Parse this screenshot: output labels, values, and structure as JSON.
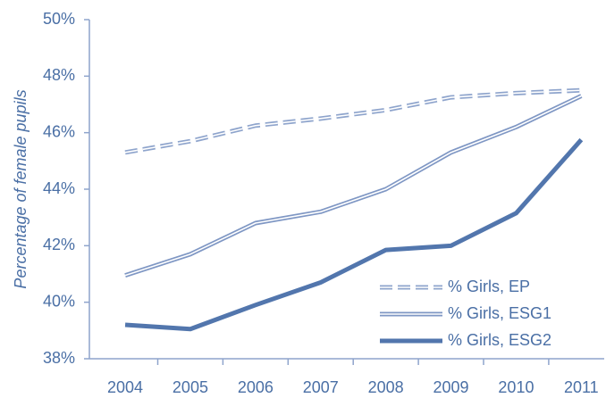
{
  "chart_data": {
    "type": "line",
    "y_label": "Percentage of female pupils",
    "categories": [
      "2004",
      "2005",
      "2006",
      "2007",
      "2008",
      "2009",
      "2010",
      "2011"
    ],
    "series": [
      {
        "name": "% Girls, EP",
        "color": "#8ea4cc",
        "style": "double-dashed",
        "values": [
          45.3,
          45.7,
          46.25,
          46.5,
          46.8,
          47.25,
          47.4,
          47.5
        ]
      },
      {
        "name": "% Girls, ESG1",
        "color": "#7f97c4",
        "style": "double",
        "values": [
          40.95,
          41.7,
          42.8,
          43.2,
          44.0,
          45.3,
          46.2,
          47.3
        ]
      },
      {
        "name": "% Girls, ESG2",
        "color": "#5276ad",
        "style": "solid",
        "values": [
          39.2,
          39.05,
          39.9,
          40.7,
          41.85,
          42.0,
          43.15,
          45.75
        ]
      }
    ],
    "ylim": [
      38,
      50
    ],
    "yticks": [
      {
        "value": 38,
        "label": "38%"
      },
      {
        "value": 40,
        "label": "40%"
      },
      {
        "value": 42,
        "label": "42%"
      },
      {
        "value": 44,
        "label": "44%"
      },
      {
        "value": 46,
        "label": "46%"
      },
      {
        "value": 48,
        "label": "48%"
      },
      {
        "value": 50,
        "label": "50%"
      }
    ],
    "grid": false,
    "legend": "lower right"
  }
}
